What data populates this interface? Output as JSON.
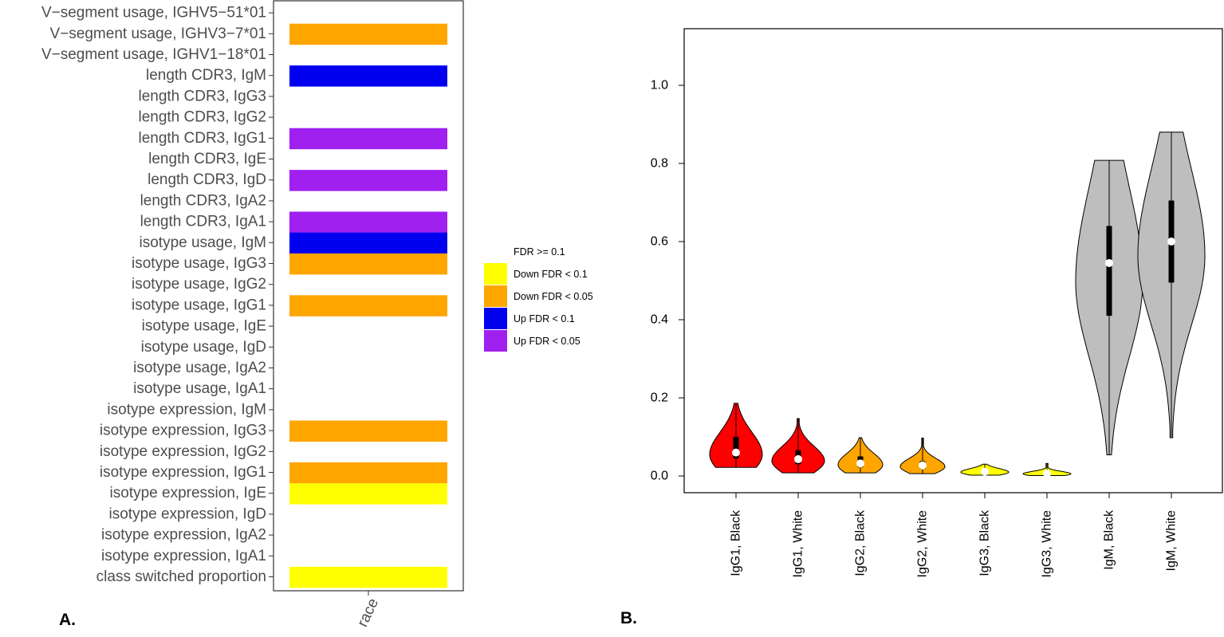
{
  "panel_a": {
    "label": "A.",
    "chart_data": {
      "type": "heatmap",
      "x_categories": [
        "race"
      ],
      "rows": [
        {
          "label": "V−segment usage, IGHV5−51*01",
          "status": "FDR >= 0.1"
        },
        {
          "label": "V−segment usage, IGHV3−7*01",
          "status": "Down FDR < 0.05"
        },
        {
          "label": "V−segment usage, IGHV1−18*01",
          "status": "FDR >= 0.1"
        },
        {
          "label": "length CDR3, IgM",
          "status": "Up FDR < 0.1"
        },
        {
          "label": "length CDR3, IgG3",
          "status": "FDR >= 0.1"
        },
        {
          "label": "length CDR3, IgG2",
          "status": "FDR >= 0.1"
        },
        {
          "label": "length CDR3, IgG1",
          "status": "Up FDR < 0.05"
        },
        {
          "label": "length CDR3, IgE",
          "status": "FDR >= 0.1"
        },
        {
          "label": "length CDR3, IgD",
          "status": "Up FDR < 0.05"
        },
        {
          "label": "length CDR3, IgA2",
          "status": "FDR >= 0.1"
        },
        {
          "label": "length CDR3, IgA1",
          "status": "Up FDR < 0.05"
        },
        {
          "label": "isotype usage, IgM",
          "status": "Up FDR < 0.1"
        },
        {
          "label": "isotype usage, IgG3",
          "status": "Down FDR < 0.05"
        },
        {
          "label": "isotype usage, IgG2",
          "status": "FDR >= 0.1"
        },
        {
          "label": "isotype usage, IgG1",
          "status": "Down FDR < 0.05"
        },
        {
          "label": "isotype usage, IgE",
          "status": "FDR >= 0.1"
        },
        {
          "label": "isotype usage, IgD",
          "status": "FDR >= 0.1"
        },
        {
          "label": "isotype usage, IgA2",
          "status": "FDR >= 0.1"
        },
        {
          "label": "isotype usage, IgA1",
          "status": "FDR >= 0.1"
        },
        {
          "label": "isotype expression, IgM",
          "status": "FDR >= 0.1"
        },
        {
          "label": "isotype expression, IgG3",
          "status": "Down FDR < 0.05"
        },
        {
          "label": "isotype expression, IgG2",
          "status": "FDR >= 0.1"
        },
        {
          "label": "isotype expression, IgG1",
          "status": "Down FDR < 0.05"
        },
        {
          "label": "isotype expression, IgE",
          "status": "Down FDR < 0.1"
        },
        {
          "label": "isotype expression, IgD",
          "status": "FDR >= 0.1"
        },
        {
          "label": "isotype expression, IgA2",
          "status": "FDR >= 0.1"
        },
        {
          "label": "isotype expression, IgA1",
          "status": "FDR >= 0.1"
        },
        {
          "label": "class switched proportion",
          "status": "Down FDR < 0.1"
        }
      ],
      "legend": [
        {
          "label": "FDR >= 0.1",
          "color": "#ffffff"
        },
        {
          "label": "Down FDR < 0.1",
          "color": "#ffff00"
        },
        {
          "label": "Down FDR < 0.05",
          "color": "#ffa500"
        },
        {
          "label": "Up FDR < 0.1",
          "color": "#0000ee"
        },
        {
          "label": "Up FDR < 0.05",
          "color": "#a020f0"
        }
      ]
    }
  },
  "panel_b": {
    "label": "B.",
    "chart_data": {
      "type": "violin",
      "ylim": [
        -0.04,
        1.14
      ],
      "yticks": [
        0.0,
        0.2,
        0.4,
        0.6,
        0.8,
        1.0
      ],
      "ytick_labels": [
        "0.0",
        "0.2",
        "0.4",
        "0.6",
        "0.8",
        "1.0"
      ],
      "groups": [
        {
          "label": "IgG1, Black",
          "color": "#ff0000",
          "min": 0.022,
          "q1": 0.045,
          "median": 0.06,
          "q3": 0.1,
          "max": 0.186
        },
        {
          "label": "IgG1, White",
          "color": "#ff0000",
          "min": 0.008,
          "q1": 0.03,
          "median": 0.043,
          "q3": 0.066,
          "max": 0.147
        },
        {
          "label": "IgG2, Black",
          "color": "#ffa500",
          "min": 0.008,
          "q1": 0.022,
          "median": 0.032,
          "q3": 0.05,
          "max": 0.098
        },
        {
          "label": "IgG2, White",
          "color": "#ffa500",
          "min": 0.006,
          "q1": 0.018,
          "median": 0.027,
          "q3": 0.038,
          "max": 0.097
        },
        {
          "label": "IgG3, Black",
          "color": "#ffff00",
          "min": 0.002,
          "q1": 0.007,
          "median": 0.011,
          "q3": 0.016,
          "max": 0.03
        },
        {
          "label": "IgG3, White",
          "color": "#ffff00",
          "min": 0.001,
          "q1": 0.004,
          "median": 0.006,
          "q3": 0.009,
          "max": 0.032
        },
        {
          "label": "IgM, Black",
          "color": "#bebebe",
          "min": 0.054,
          "q1": 0.41,
          "median": 0.545,
          "q3": 0.64,
          "max": 0.808
        },
        {
          "label": "IgM, White",
          "color": "#bebebe",
          "min": 0.098,
          "q1": 0.495,
          "median": 0.6,
          "q3": 0.705,
          "max": 0.88
        }
      ]
    }
  }
}
